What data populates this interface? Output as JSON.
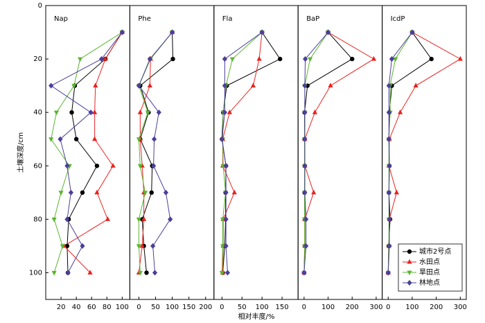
{
  "chart_data": {
    "type": "line",
    "y_label": "土壤深度/cm",
    "x_label": "相对丰度/%",
    "ylim": [
      0,
      110
    ],
    "yticks": [
      0,
      20,
      40,
      60,
      80,
      100
    ],
    "y_inverted": true,
    "depths": [
      10,
      20,
      30,
      40,
      50,
      60,
      70,
      80,
      90,
      100
    ],
    "legend": "lower right",
    "series": [
      {
        "name": "城市2号点",
        "color": "#000000",
        "marker": "circle"
      },
      {
        "name": "水田点",
        "color": "#e8231f",
        "marker": "triangle-up"
      },
      {
        "name": "旱田点",
        "color": "#5cb531",
        "marker": "triangle-down"
      },
      {
        "name": "林地点",
        "color": "#4b3f9a",
        "marker": "diamond"
      }
    ],
    "panels": [
      {
        "title": "Nap",
        "xlim": [
          0,
          110
        ],
        "xticks": [
          20,
          40,
          60,
          80,
          100
        ],
        "values": [
          [
            100,
            78,
            38,
            34,
            40,
            67,
            48,
            30,
            28,
            29
          ],
          [
            100,
            78,
            65,
            64,
            64,
            88,
            67,
            81,
            24,
            58
          ],
          [
            100,
            45,
            37,
            14,
            7,
            31,
            20,
            11,
            22,
            11
          ],
          [
            100,
            73,
            7,
            59,
            19,
            28,
            33,
            28,
            48,
            29
          ]
        ]
      },
      {
        "title": "Phe",
        "xlim": [
          -27,
          225
        ],
        "xticks": [
          0,
          50,
          100,
          150,
          200
        ],
        "values": [
          [
            100,
            102,
            4,
            29,
            4,
            40,
            38,
            10,
            15,
            23
          ],
          [
            100,
            35,
            33,
            4,
            4,
            10,
            15,
            15,
            10,
            0
          ],
          [
            100,
            35,
            0,
            27,
            0,
            4,
            19,
            0,
            0,
            4
          ],
          [
            100,
            33,
            0,
            60,
            46,
            44,
            81,
            94,
            42,
            48
          ]
        ]
      },
      {
        "title": "Fla",
        "xlim": [
          -20,
          190
        ],
        "xticks": [
          0,
          50,
          100,
          150
        ],
        "values": [
          [
            100,
            145,
            12,
            3,
            0,
            10,
            9,
            9,
            7,
            2
          ],
          [
            100,
            93,
            78,
            19,
            2,
            2,
            31,
            3,
            3,
            2
          ],
          [
            100,
            26,
            10,
            3,
            2,
            3,
            9,
            2,
            2,
            0
          ],
          [
            100,
            7,
            7,
            7,
            0,
            10,
            10,
            10,
            10,
            14
          ]
        ]
      },
      {
        "title": "BaP",
        "xlim": [
          -25,
          325
        ],
        "xticks": [
          0,
          100,
          200,
          300
        ],
        "values": [
          [
            100,
            200,
            14,
            2,
            2,
            3,
            2,
            3,
            3,
            0
          ],
          [
            100,
            290,
            110,
            45,
            3,
            3,
            40,
            3,
            3,
            0
          ],
          [
            100,
            25,
            3,
            3,
            2,
            2,
            2,
            2,
            2,
            0
          ],
          [
            100,
            5,
            3,
            3,
            3,
            3,
            3,
            8,
            8,
            0
          ]
        ]
      },
      {
        "title": "IcdP",
        "xlim": [
          -25,
          325
        ],
        "xticks": [
          0,
          100,
          200,
          300
        ],
        "values": [
          [
            100,
            180,
            15,
            5,
            3,
            5,
            3,
            8,
            2,
            0
          ],
          [
            100,
            300,
            115,
            50,
            5,
            3,
            35,
            5,
            3,
            0
          ],
          [
            100,
            30,
            8,
            8,
            3,
            3,
            3,
            3,
            3,
            0
          ],
          [
            100,
            15,
            3,
            3,
            3,
            5,
            3,
            5,
            5,
            0
          ]
        ]
      }
    ]
  }
}
